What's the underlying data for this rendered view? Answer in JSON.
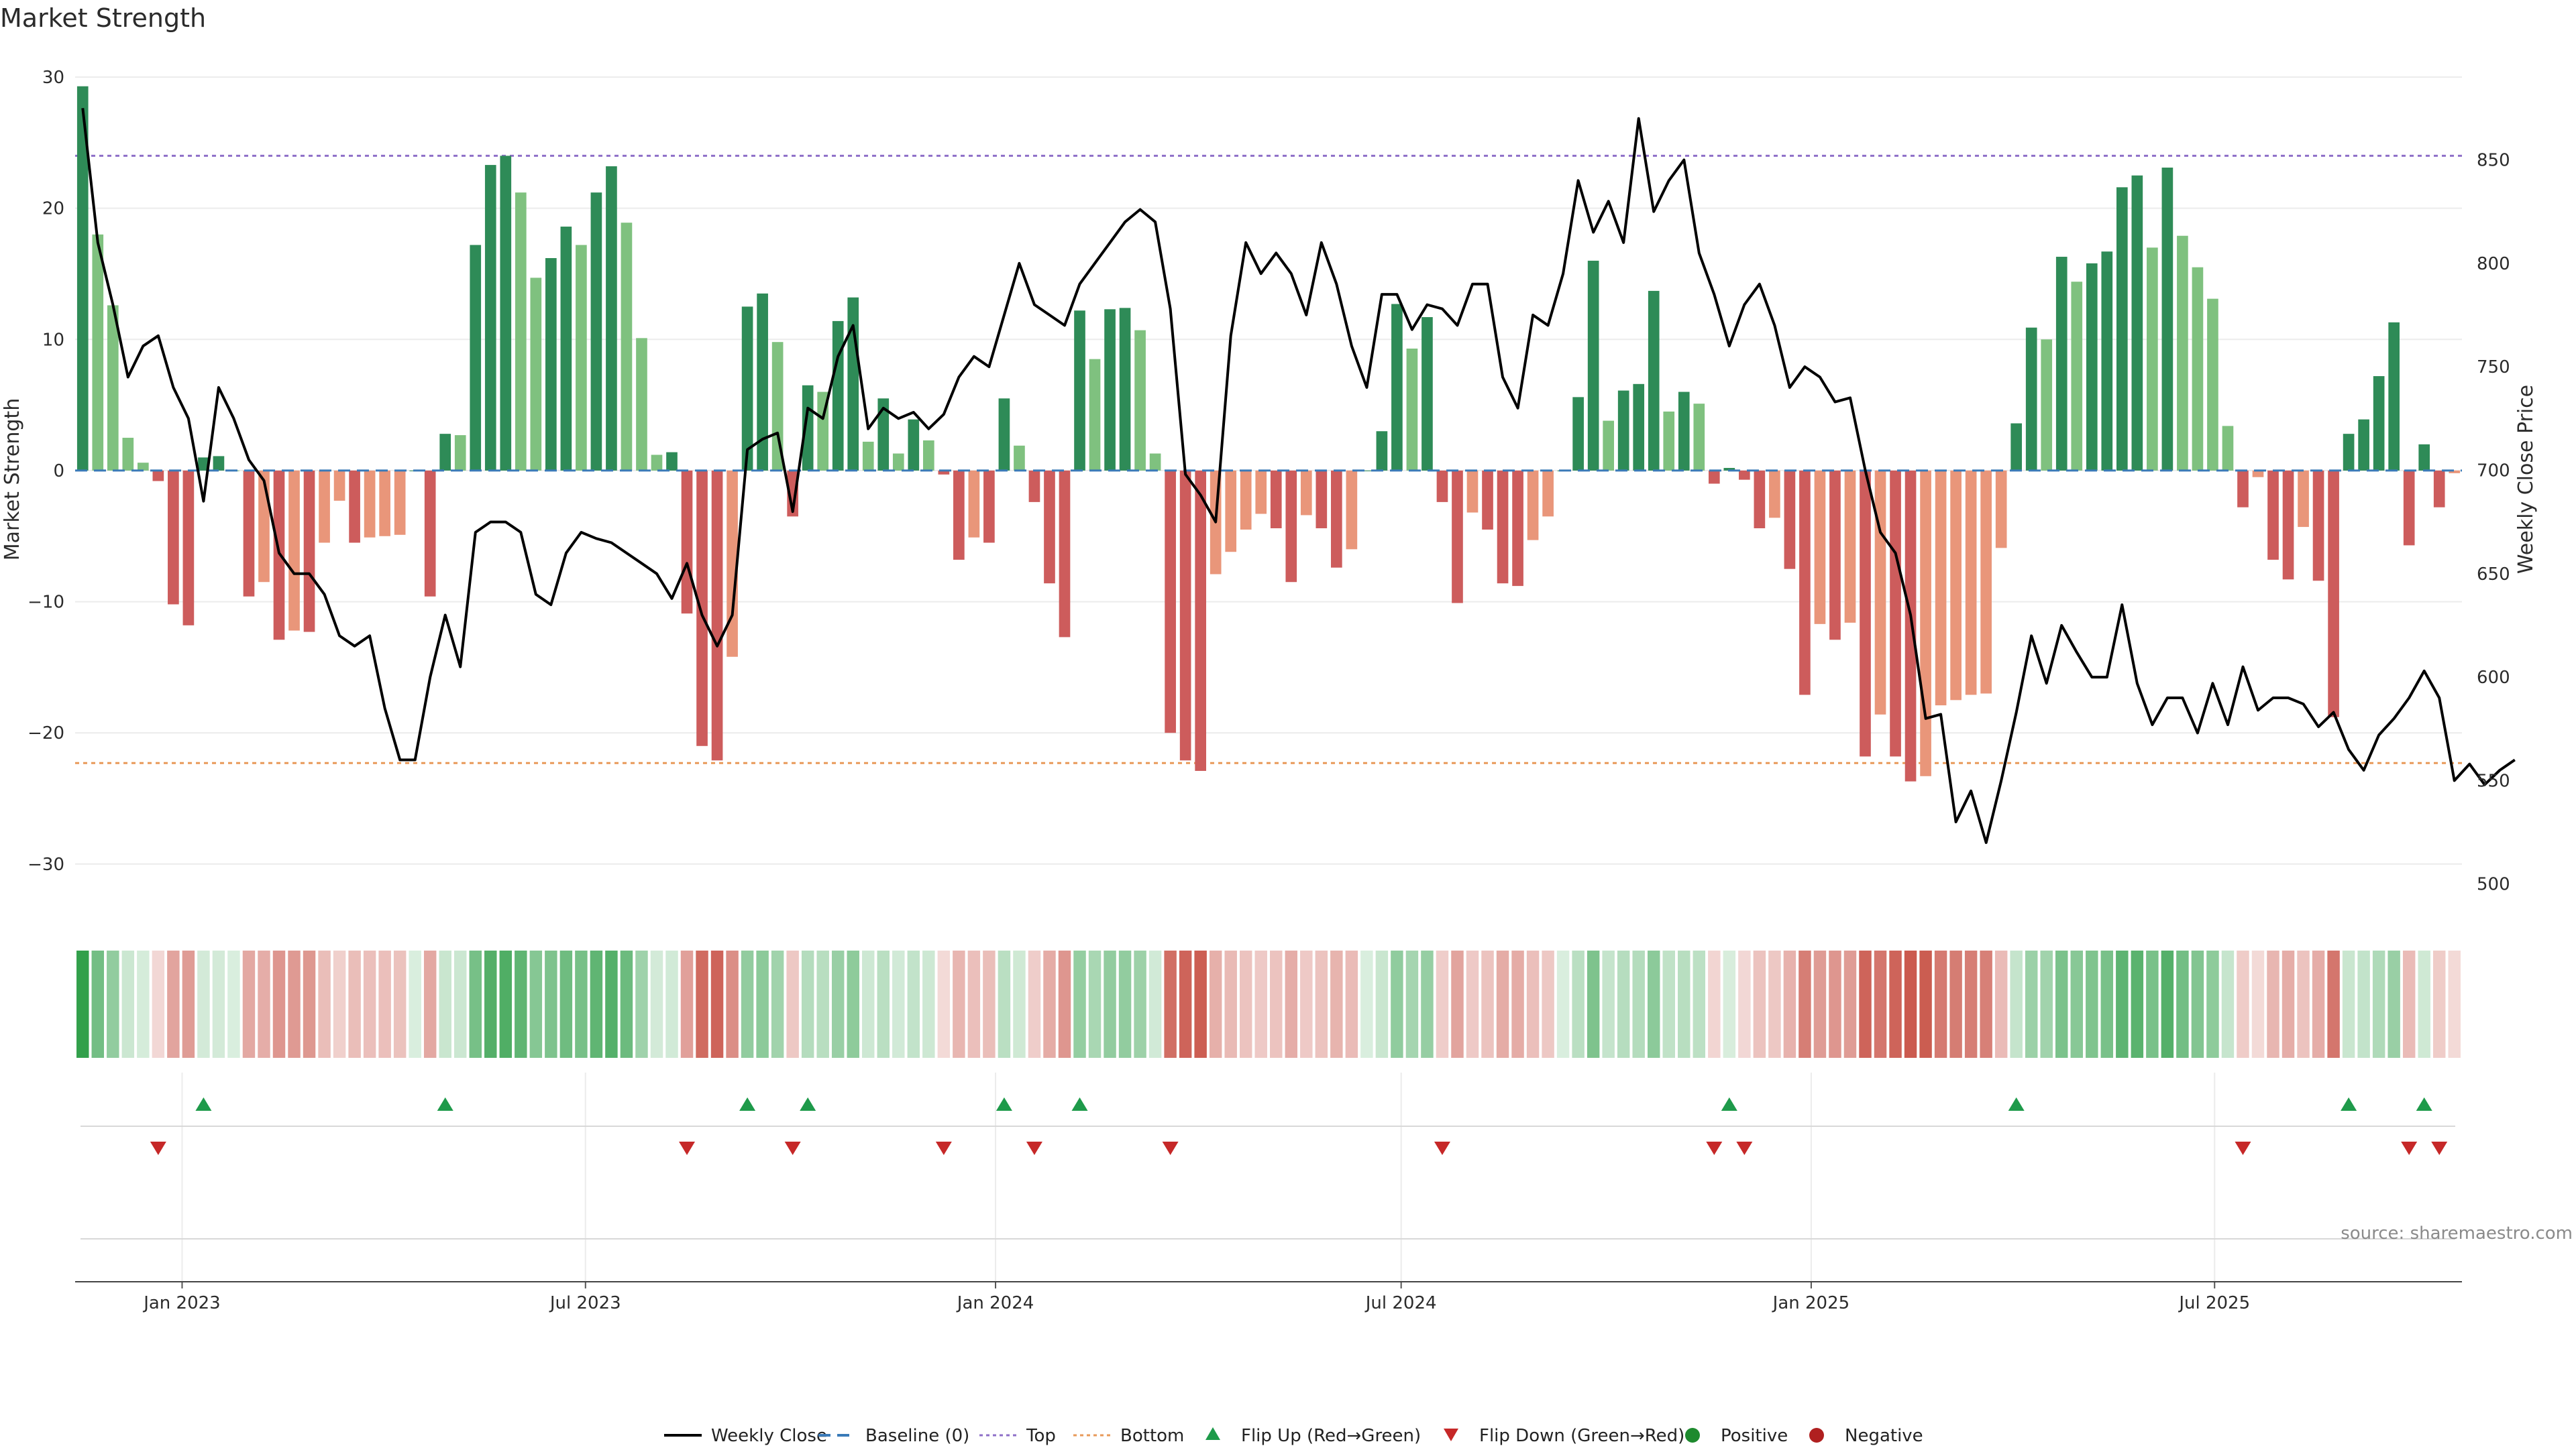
{
  "chart_data": {
    "type": "bar",
    "title": "Market Strength",
    "ylabel": "Market Strength",
    "y2label": "Weekly Close Price",
    "ylim": [
      -32,
      30
    ],
    "y2lim": [
      497,
      890
    ],
    "yticks": [
      30,
      20,
      10,
      0,
      -10,
      -20,
      -30
    ],
    "yticklabels": [
      "30",
      "20",
      "10",
      "0",
      "−10",
      "−20",
      "−30"
    ],
    "y2ticks": [
      850,
      800,
      750,
      700,
      650,
      600,
      550,
      500
    ],
    "x_start": "2022-11-14",
    "x_end": "2025-10-20",
    "xticks": [
      {
        "label": "Jan 2023",
        "date": "2023-01-01"
      },
      {
        "label": "Jul 2023",
        "date": "2023-07-01"
      },
      {
        "label": "Jan 2024",
        "date": "2024-01-01"
      },
      {
        "label": "Jul 2024",
        "date": "2024-07-01"
      },
      {
        "label": "Jan 2025",
        "date": "2025-01-01"
      },
      {
        "label": "Jul 2025",
        "date": "2025-07-01"
      }
    ],
    "top_level": 24,
    "bottom_level": -22.3,
    "baseline": 0,
    "strength": [
      29.3,
      18,
      12.6,
      2.5,
      0.6,
      -0.8,
      -10.2,
      -11.8,
      1,
      1.1,
      0,
      -9.6,
      -8.5,
      -12.9,
      -12.2,
      -12.3,
      -5.5,
      -2.3,
      -5.5,
      -5.1,
      -5,
      -4.9,
      0,
      -9.6,
      2.8,
      2.7,
      17.2,
      23.3,
      24,
      21.2,
      14.7,
      16.2,
      18.6,
      17.2,
      21.2,
      23.2,
      18.9,
      10.1,
      1.2,
      1.4,
      -10.9,
      -21,
      -22.1,
      -14.2,
      12.5,
      13.5,
      9.8,
      -3.5,
      6.5,
      6,
      11.4,
      13.2,
      2.2,
      5.5,
      1.3,
      3.9,
      2.3,
      -0.3,
      -6.8,
      -5.1,
      -5.5,
      5.5,
      1.9,
      -2.4,
      -8.6,
      -12.7,
      12.2,
      8.5,
      12.3,
      12.4,
      10.7,
      1.3,
      -20,
      -22.1,
      -22.9,
      -7.9,
      -6.2,
      -4.5,
      -3.3,
      -4.4,
      -8.5,
      -3.4,
      -4.4,
      -7.4,
      -6,
      0,
      3,
      12.7,
      9.3,
      11.7,
      -2.4,
      -10.1,
      -3.2,
      -4.5,
      -8.6,
      -8.8,
      -5.3,
      -3.5,
      0,
      5.6,
      16,
      3.8,
      6.1,
      6.6,
      13.7,
      4.5,
      6,
      5.1,
      -1,
      0.2,
      -0.7,
      -4.4,
      -3.6,
      -7.5,
      -17.1,
      -11.7,
      -12.9,
      -11.6,
      -21.8,
      -18.6,
      -21.8,
      -23.7,
      -23.3,
      -17.9,
      -17.5,
      -17.1,
      -17,
      -5.9,
      3.6,
      10.9,
      10,
      16.3,
      14.4,
      15.8,
      16.7,
      21.6,
      22.5,
      17,
      23.1,
      17.9,
      15.5,
      13.1,
      3.4,
      -2.8,
      -0.5,
      -6.8,
      -8.3,
      -4.3,
      -8.4,
      -18.8,
      2.8,
      3.9,
      7.2,
      11.3,
      -5.7,
      2,
      -2.8,
      -0.2
    ],
    "price": [
      875,
      810,
      780,
      745,
      760,
      765,
      740,
      725,
      685,
      740,
      725,
      705,
      695,
      660,
      650,
      650,
      640,
      620,
      615,
      620,
      585,
      560,
      560,
      600,
      630,
      605,
      670,
      675,
      675,
      670,
      640,
      635,
      660,
      670,
      667,
      665,
      660,
      655,
      650,
      638,
      655,
      630,
      615,
      630,
      710,
      715,
      718,
      680,
      730,
      725,
      755,
      770,
      720,
      730,
      725,
      728,
      720,
      727,
      745,
      755,
      750,
      775,
      800,
      780,
      775,
      770,
      790,
      800,
      810,
      820,
      826,
      820,
      778,
      698,
      688,
      675,
      765,
      810,
      795,
      805,
      795,
      775,
      810,
      790,
      760,
      740,
      785,
      785,
      768,
      780,
      778,
      770,
      790,
      790,
      745,
      730,
      775,
      770,
      795,
      840,
      815,
      830,
      810,
      870,
      825,
      840,
      850,
      805,
      785,
      760,
      780,
      790,
      770,
      740,
      750,
      745,
      733,
      735,
      700,
      670,
      660,
      630,
      580,
      582,
      530,
      545,
      520,
      550,
      583,
      620,
      597,
      625,
      612,
      600,
      600,
      635,
      597,
      577,
      590,
      590,
      573,
      597,
      577,
      605,
      584,
      590,
      590,
      587,
      576,
      583,
      565,
      555,
      572,
      580,
      590,
      603,
      590,
      550,
      558,
      548,
      555,
      560
    ]
  },
  "legend": [
    {
      "label": "Weekly Close",
      "kind": "line",
      "color": "#000000"
    },
    {
      "label": "Baseline (0)",
      "kind": "dashed",
      "color": "#3a7ab8"
    },
    {
      "label": "Top",
      "kind": "dotted",
      "color": "#8e6fc8"
    },
    {
      "label": "Bottom",
      "kind": "dotted",
      "color": "#e89a5a"
    },
    {
      "label": "Flip Up (Red→Green)",
      "kind": "up",
      "color": "#1e9a4a"
    },
    {
      "label": "Flip Down (Green→Red)",
      "kind": "down",
      "color": "#c62828"
    },
    {
      "label": "Positive",
      "kind": "dot",
      "color": "#1e8a2e"
    },
    {
      "label": "Negative",
      "kind": "dot",
      "color": "#b02020"
    }
  ],
  "colors": {
    "pos_strong": "#2e8b57",
    "pos_light": "#7fc17f",
    "neg_strong": "#cd5c5c",
    "neg_light": "#e9967a",
    "heat_pos": "#2e9e47",
    "heat_neg": "#c0392b",
    "price": "#000000",
    "grid": "#ececec"
  },
  "source_text": "source: sharemaestro.com"
}
